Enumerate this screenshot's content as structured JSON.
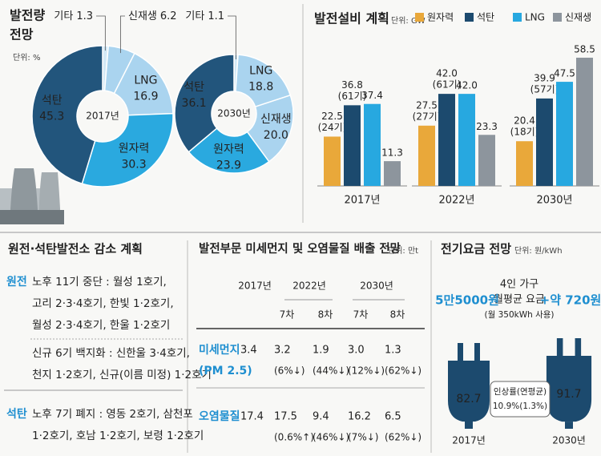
{
  "chart_data": [
    {
      "type": "pie",
      "title_lines": [
        "발전량",
        "전망"
      ],
      "subtitle": "단위: %",
      "center_label": "2017년",
      "categories": [
        "기타",
        "신재생",
        "LNG",
        "원자력",
        "석탄"
      ],
      "values": [
        1.3,
        6.2,
        16.9,
        30.3,
        45.3
      ],
      "colors": [
        "#d3e9f6",
        "#aad4ef",
        "#aad4ef",
        "#2aa9df",
        "#22557c"
      ]
    },
    {
      "type": "pie",
      "center_label": "2030년",
      "categories": [
        "기타",
        "LNG",
        "신재생",
        "원자력",
        "석탄"
      ],
      "values": [
        1.1,
        18.8,
        20,
        23.9,
        36.1
      ],
      "value_labels": [
        "1.1",
        "18.8",
        "20.0",
        "23.9",
        "36.1"
      ],
      "colors": [
        "#d3e9f6",
        "#aad4ef",
        "#aad4ef",
        "#2aa9df",
        "#22557c"
      ]
    },
    {
      "type": "bar",
      "title": "발전설비 계획",
      "subtitle": "단위: GW",
      "categories": [
        "2017년",
        "2022년",
        "2030년"
      ],
      "series": [
        {
          "name": "원자력",
          "color": "#e9a83a",
          "values": [
            22.5,
            27.5,
            20.4
          ],
          "unit_labels": [
            "(24기)",
            "(27기)",
            "(18기)"
          ]
        },
        {
          "name": "석탄",
          "color": "#1c4a6e",
          "values": [
            36.8,
            42,
            39.9
          ],
          "value_labels": [
            "36.8",
            "42.0",
            "39.9"
          ],
          "unit_labels": [
            "(61기)",
            "(61기)",
            "(57기)"
          ]
        },
        {
          "name": "LNG",
          "color": "#27a8e0",
          "values": [
            37.4,
            42,
            47.5
          ],
          "value_labels": [
            "37.4",
            "42.0",
            "47.5"
          ]
        },
        {
          "name": "신재생",
          "color": "#8d959d",
          "values": [
            11.3,
            23.3,
            58.5
          ]
        }
      ]
    }
  ],
  "plant_plan": {
    "title": "원전·석탄발전소 감소 계획",
    "groups": [
      {
        "label": "원전",
        "blocks": [
          [
            "노후 11기 중단 : 월성 1호기,",
            "고리 2·3·4호기, 한빛 1·2호기,",
            "월성 2·3·4호기, 한울 1·2호기"
          ],
          [
            "신규 6기 백지화 : 신한울 3·4호기,",
            "천지 1·2호기, 신규(이름 미정) 1·2호기"
          ]
        ]
      },
      {
        "label": "석탄",
        "blocks": [
          [
            "노후 7기 폐지 : 영동 2호기, 삼천포",
            "1·2호기, 호남 1·2호기, 보령 1·2호기"
          ]
        ]
      }
    ]
  },
  "emissions": {
    "title": "발전부문 미세먼지 및 오염물질 배출 전망",
    "unit": "단위: 만t",
    "years": [
      "2017년",
      "2022년",
      "2030년"
    ],
    "plans": [
      "7차",
      "8차",
      "7차",
      "8차"
    ],
    "rows": [
      {
        "label_lines": [
          "미세먼지",
          "(PM 2.5)"
        ],
        "base": "3.4",
        "values": [
          [
            "3.2",
            "(6%↓)"
          ],
          [
            "1.9",
            "(44%↓)"
          ],
          [
            "3.0",
            "(12%↓)"
          ],
          [
            "1.3",
            "(62%↓)"
          ]
        ]
      },
      {
        "label_lines": [
          "오염물질"
        ],
        "base": "17.4",
        "values": [
          [
            "17.5",
            "(0.6%↑)"
          ],
          [
            "9.4",
            "(46%↓)"
          ],
          [
            "16.2",
            "(7%↓)"
          ],
          [
            "6.5",
            "(62%↓)"
          ]
        ]
      }
    ]
  },
  "electricity": {
    "title": "전기요금 전망",
    "unit": "단위: 원/kWh",
    "household_lines": [
      "4인 가구",
      "월평균 요금",
      "(월 350kWh 사용)"
    ],
    "current": "5만5000원",
    "increase": "+약 720원",
    "rate_label": "인상률(연평균)",
    "rate": "10.9%(1.3%)",
    "plugs": [
      {
        "value": "82.7",
        "year": "2017년"
      },
      {
        "value": "91.7",
        "year": "2030년"
      }
    ]
  }
}
